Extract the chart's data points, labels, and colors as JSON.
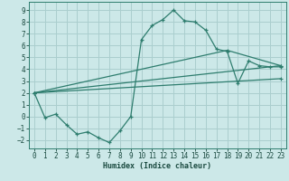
{
  "xlabel": "Humidex (Indice chaleur)",
  "bg_color": "#cce8e8",
  "grid_color": "#aacece",
  "line_color": "#2e7d6e",
  "xlim": [
    -0.5,
    23.5
  ],
  "ylim": [
    -2.7,
    9.7
  ],
  "xticks": [
    0,
    1,
    2,
    3,
    4,
    5,
    6,
    7,
    8,
    9,
    10,
    11,
    12,
    13,
    14,
    15,
    16,
    17,
    18,
    19,
    20,
    21,
    22,
    23
  ],
  "yticks": [
    -2,
    -1,
    0,
    1,
    2,
    3,
    4,
    5,
    6,
    7,
    8,
    9
  ],
  "curve1_x": [
    0,
    1,
    2,
    3,
    4,
    5,
    6,
    7,
    8,
    9,
    10,
    11,
    12,
    13,
    14,
    15,
    16,
    17,
    18,
    19,
    20,
    21,
    22,
    23
  ],
  "curve1_y": [
    2.0,
    -0.1,
    0.2,
    -0.7,
    -1.5,
    -1.3,
    -1.8,
    -2.2,
    -1.2,
    0.0,
    6.5,
    7.7,
    8.2,
    9.0,
    8.1,
    8.0,
    7.3,
    5.7,
    5.5,
    2.8,
    4.7,
    4.3,
    4.2,
    4.2
  ],
  "line1_x": [
    0,
    23
  ],
  "line1_y": [
    2.0,
    3.2
  ],
  "line2_x": [
    0,
    23
  ],
  "line2_y": [
    2.0,
    4.3
  ],
  "line3_x": [
    0,
    18,
    23
  ],
  "line3_y": [
    2.0,
    5.6,
    4.3
  ],
  "xlabel_fontsize": 6.0,
  "tick_fontsize": 5.5
}
